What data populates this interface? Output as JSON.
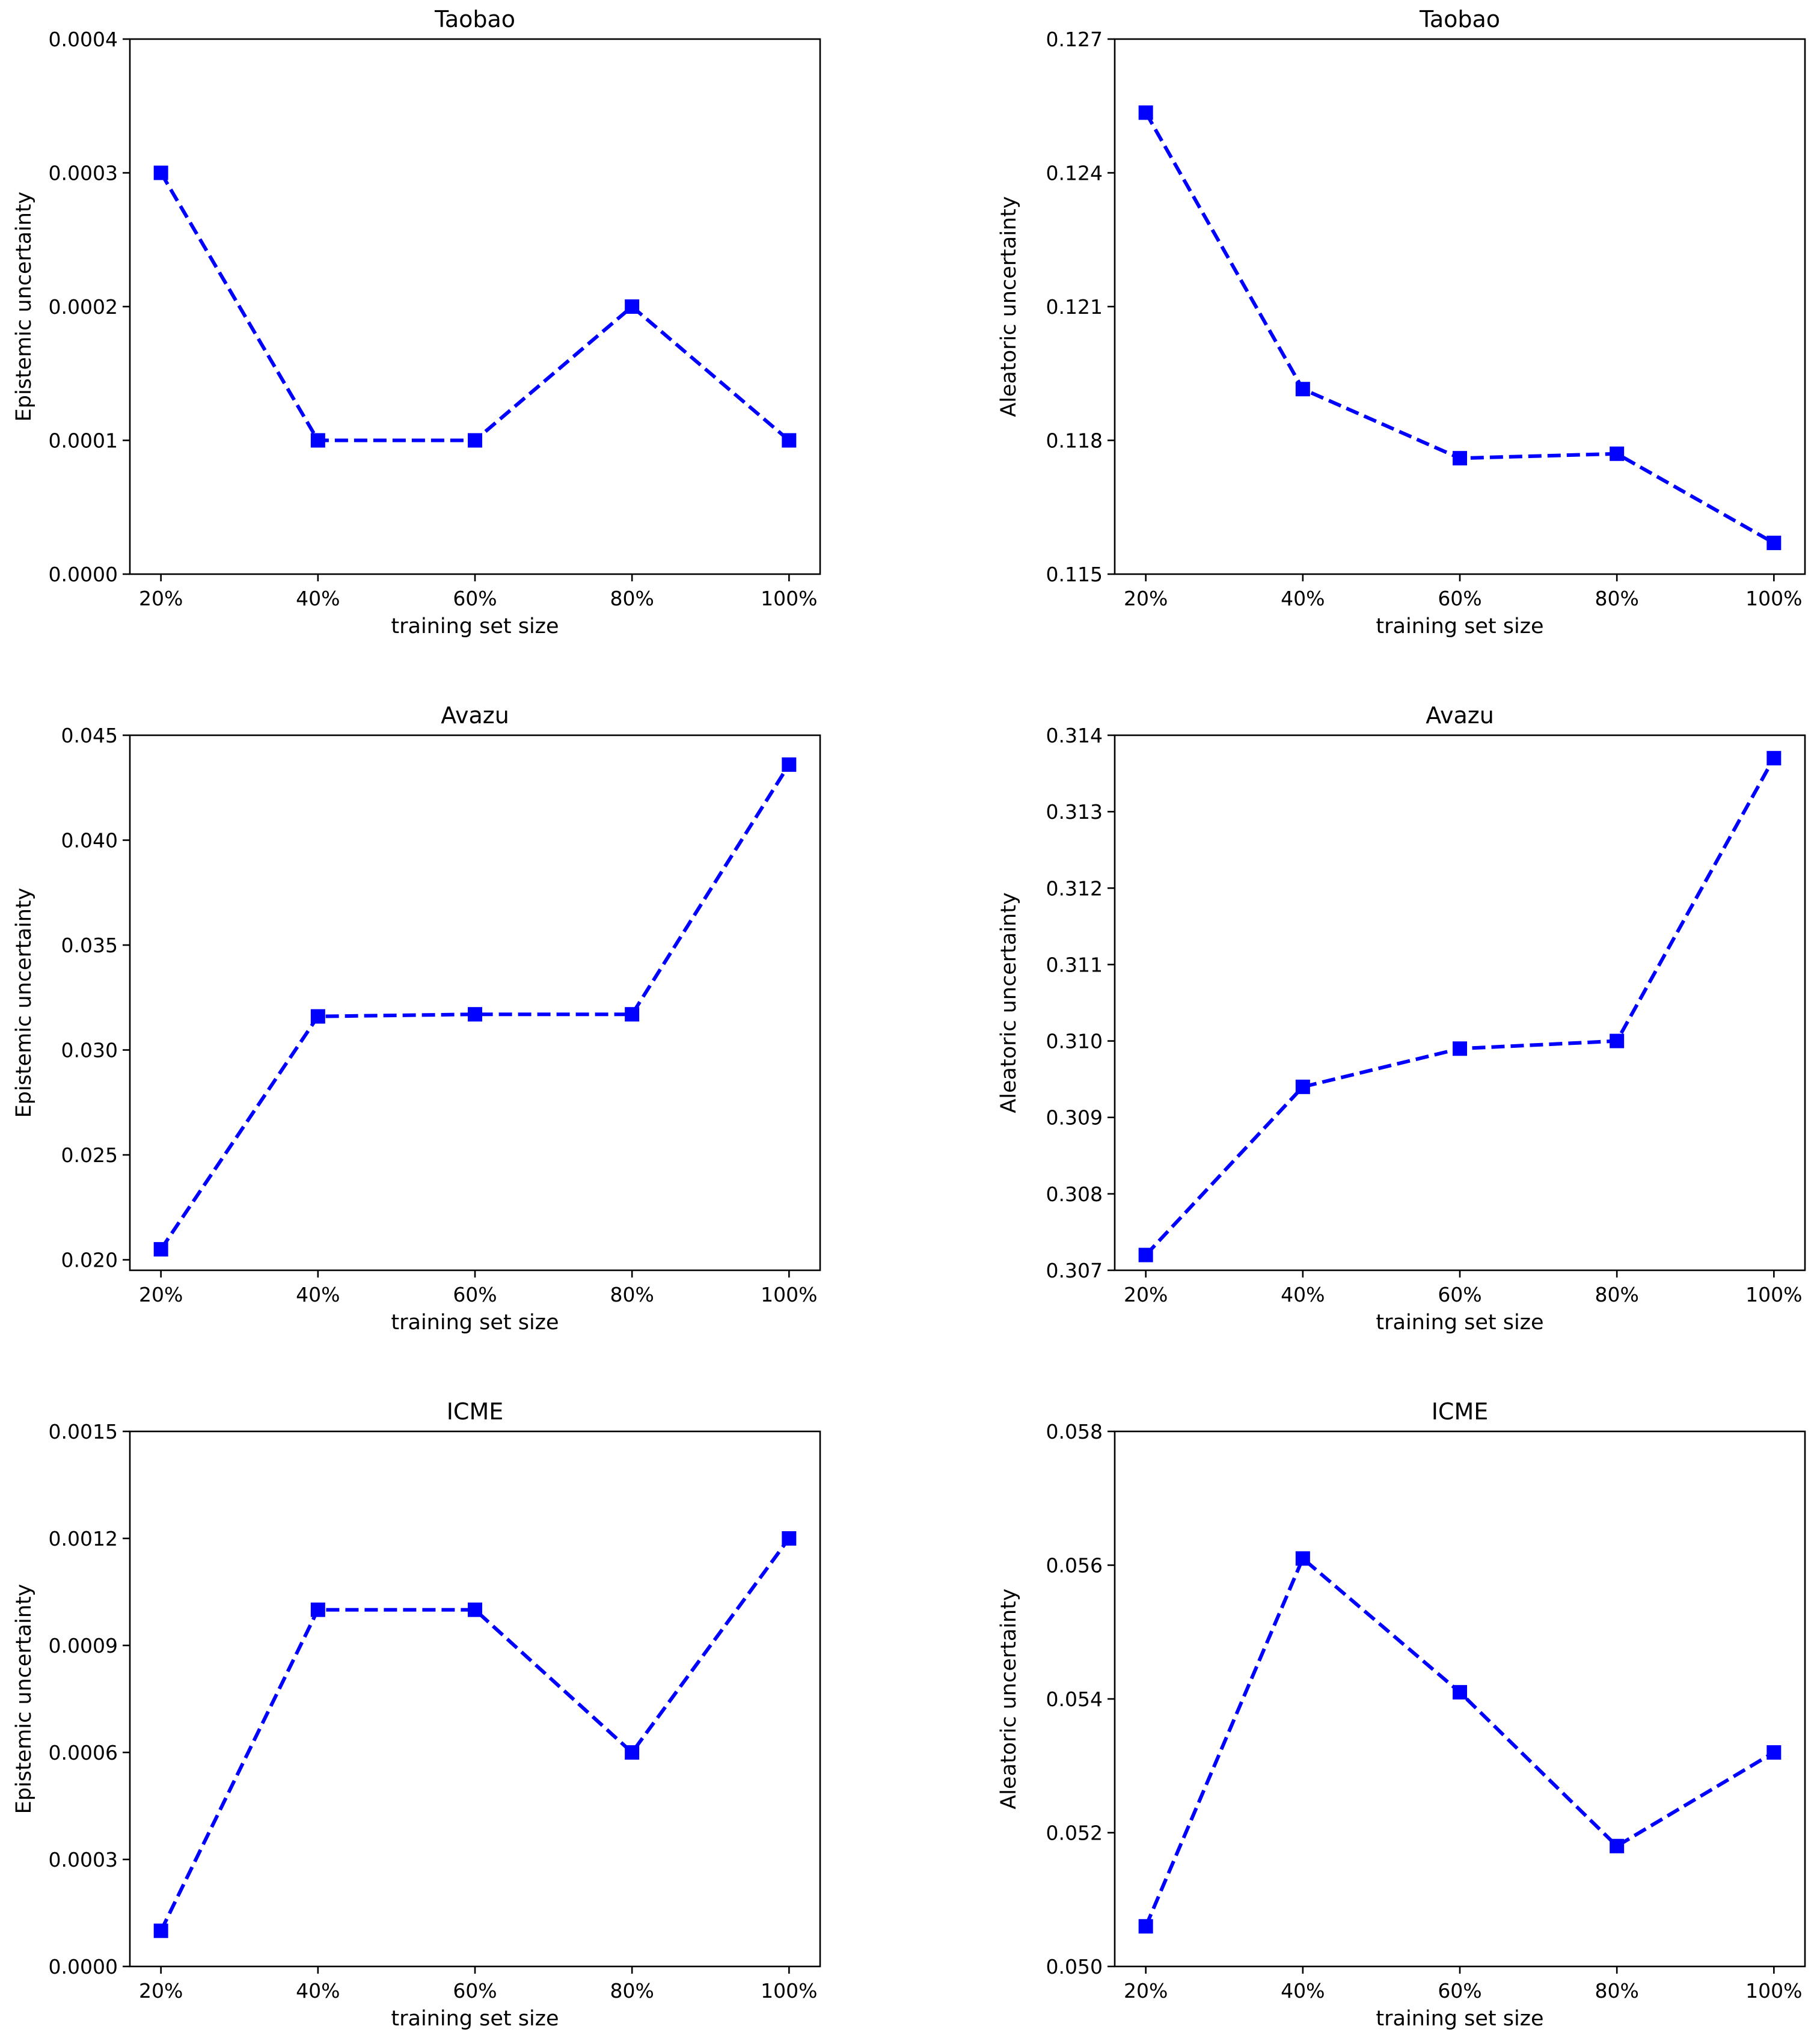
{
  "chart_data": [
    {
      "type": "line",
      "title": "Taobao",
      "xlabel": "training set size",
      "ylabel": "Epistemic uncertainty",
      "categories": [
        "20%",
        "40%",
        "60%",
        "80%",
        "100%"
      ],
      "values": [
        0.0003,
        0.0001,
        0.0001,
        0.0002,
        0.0001
      ],
      "ylim": [
        0,
        0.0004
      ],
      "yticks": [
        "0.0000",
        "0.0001",
        "0.0002",
        "0.0003",
        "0.0004"
      ],
      "color": "#0000ff",
      "linestyle": "dashed",
      "marker": "square"
    },
    {
      "type": "line",
      "title": "Taobao",
      "xlabel": "training set size",
      "ylabel": "Aleatoric uncertainty",
      "categories": [
        "20%",
        "40%",
        "60%",
        "80%",
        "100%"
      ],
      "values": [
        0.12535,
        0.11915,
        0.1176,
        0.1177,
        0.1157
      ],
      "ylim": [
        0.115,
        0.127
      ],
      "yticks": [
        "0.115",
        "0.118",
        "0.121",
        "0.124",
        "0.127"
      ],
      "color": "#0000ff",
      "linestyle": "dashed",
      "marker": "square"
    },
    {
      "type": "line",
      "title": "Avazu",
      "xlabel": "training set size",
      "ylabel": "Epistemic uncertainty",
      "categories": [
        "20%",
        "40%",
        "60%",
        "80%",
        "100%"
      ],
      "values": [
        0.0205,
        0.0316,
        0.0317,
        0.0317,
        0.0436
      ],
      "ylim": [
        0.0195,
        0.045
      ],
      "yticks": [
        "0.020",
        "0.025",
        "0.030",
        "0.035",
        "0.040",
        "0.045"
      ],
      "color": "#0000ff",
      "linestyle": "dashed",
      "marker": "square"
    },
    {
      "type": "line",
      "title": "Avazu",
      "xlabel": "training set size",
      "ylabel": "Aleatoric uncertainty",
      "categories": [
        "20%",
        "40%",
        "60%",
        "80%",
        "100%"
      ],
      "values": [
        0.3072,
        0.3094,
        0.3099,
        0.31,
        0.3137
      ],
      "ylim": [
        0.307,
        0.314
      ],
      "yticks": [
        "0.307",
        "0.308",
        "0.309",
        "0.310",
        "0.311",
        "0.312",
        "0.313",
        "0.314"
      ],
      "color": "#0000ff",
      "linestyle": "dashed",
      "marker": "square"
    },
    {
      "type": "line",
      "title": "ICME",
      "xlabel": "training set size",
      "ylabel": "Epistemic uncertainty",
      "categories": [
        "20%",
        "40%",
        "60%",
        "80%",
        "100%"
      ],
      "values": [
        0.0001,
        0.001,
        0.001,
        0.0006,
        0.0012
      ],
      "ylim": [
        0,
        0.0015
      ],
      "yticks": [
        "0.0000",
        "0.0003",
        "0.0006",
        "0.0009",
        "0.0012",
        "0.0015"
      ],
      "color": "#0000ff",
      "linestyle": "dashed",
      "marker": "square"
    },
    {
      "type": "line",
      "title": "ICME",
      "xlabel": "training set size",
      "ylabel": "Aleatoric uncertainty",
      "categories": [
        "20%",
        "40%",
        "60%",
        "80%",
        "100%"
      ],
      "values": [
        0.0506,
        0.0561,
        0.0541,
        0.0518,
        0.0532
      ],
      "ylim": [
        0.05,
        0.058
      ],
      "yticks": [
        "0.050",
        "0.052",
        "0.054",
        "0.056",
        "0.058"
      ],
      "color": "#0000ff",
      "linestyle": "dashed",
      "marker": "square"
    }
  ]
}
